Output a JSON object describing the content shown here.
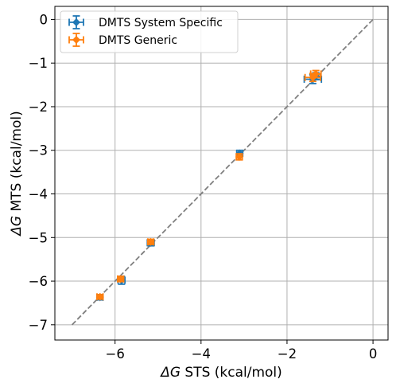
{
  "chart_data": {
    "type": "scatter",
    "xlabel_symbol": "ΔG",
    "xlabel_rest": " STS (kcal/mol)",
    "ylabel_symbol": "ΔG",
    "ylabel_rest": " MTS (kcal/mol)",
    "xlim": [
      -7.4,
      0.35
    ],
    "ylim": [
      -7.35,
      0.3
    ],
    "xticks": [
      -6,
      -4,
      -2,
      0
    ],
    "xtick_labels": [
      "−6",
      "−4",
      "−2",
      "0"
    ],
    "yticks": [
      0,
      -1,
      -2,
      -3,
      -4,
      -5,
      -6,
      -7
    ],
    "ytick_labels": [
      "0",
      "−1",
      "−2",
      "−3",
      "−4",
      "−5",
      "−6",
      "−7"
    ],
    "grid": true,
    "legend_position": "top-left",
    "diagonal": {
      "from": [
        -7,
        -7
      ],
      "to": [
        0,
        0
      ],
      "color": "#808080",
      "style": "dashed"
    },
    "series": [
      {
        "name": "DMTS System Specific",
        "color": "#1f77b4",
        "points": [
          {
            "x": -6.35,
            "y": -6.37,
            "xerr": 0.07,
            "yerr": 0.06
          },
          {
            "x": -5.85,
            "y": -5.98,
            "xerr": 0.08,
            "yerr": 0.09
          },
          {
            "x": -5.17,
            "y": -5.12,
            "xerr": 0.08,
            "yerr": 0.07
          },
          {
            "x": -3.1,
            "y": -3.07,
            "xerr": 0.07,
            "yerr": 0.07
          },
          {
            "x": -1.4,
            "y": -1.37,
            "xerr": 0.2,
            "yerr": 0.1
          },
          {
            "x": -1.33,
            "y": -1.3,
            "xerr": 0.12,
            "yerr": 0.08
          }
        ]
      },
      {
        "name": "DMTS Generic",
        "color": "#ff7f0e",
        "points": [
          {
            "x": -6.35,
            "y": -6.36,
            "xerr": 0.07,
            "yerr": 0.05
          },
          {
            "x": -5.87,
            "y": -5.95,
            "xerr": 0.07,
            "yerr": 0.06
          },
          {
            "x": -5.17,
            "y": -5.1,
            "xerr": 0.07,
            "yerr": 0.06
          },
          {
            "x": -3.11,
            "y": -3.15,
            "xerr": 0.07,
            "yerr": 0.07
          },
          {
            "x": -1.4,
            "y": -1.33,
            "xerr": 0.18,
            "yerr": 0.09
          },
          {
            "x": -1.33,
            "y": -1.25,
            "xerr": 0.12,
            "yerr": 0.08
          }
        ]
      }
    ]
  }
}
